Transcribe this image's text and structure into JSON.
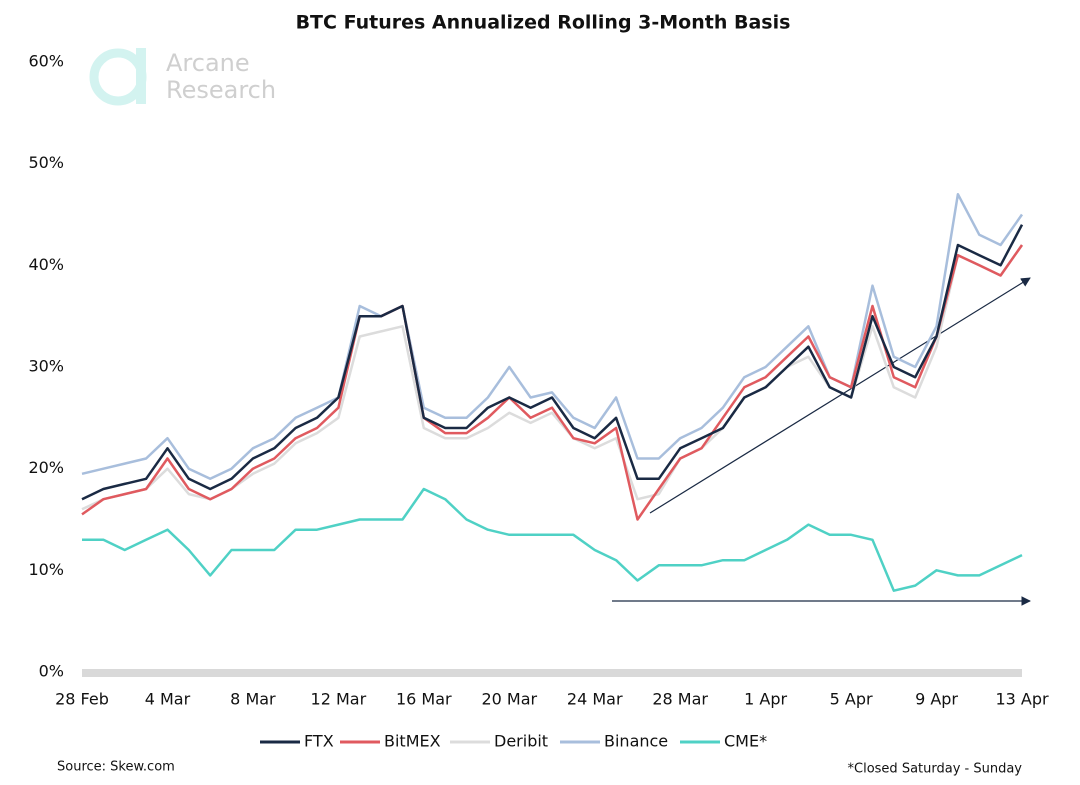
{
  "chart_data": {
    "type": "line",
    "title": "BTC Futures Annualized Rolling 3-Month Basis",
    "logo": [
      "Arcane",
      "Research"
    ],
    "source": "Source: Skew.com",
    "note": "*Closed Saturday - Sunday",
    "categories": [
      "28 Feb",
      null,
      null,
      null,
      "4 Mar",
      null,
      null,
      null,
      "8 Mar",
      null,
      null,
      null,
      "12 Mar",
      null,
      null,
      null,
      "16 Mar",
      null,
      null,
      null,
      "20 Mar",
      null,
      null,
      null,
      "24 Mar",
      null,
      null,
      null,
      "28 Mar",
      null,
      null,
      null,
      "1 Apr",
      null,
      null,
      null,
      "5 Apr",
      null,
      null,
      null,
      "9 Apr",
      null,
      null,
      null,
      "13 Apr"
    ],
    "series": [
      {
        "name": "FTX",
        "color": "#1a2a44",
        "values": [
          17,
          18,
          18.5,
          19,
          22,
          19,
          18,
          19,
          21,
          22,
          24,
          25,
          27,
          35,
          35,
          36,
          25,
          24,
          24,
          26,
          27,
          26,
          27,
          24,
          23,
          25,
          19,
          19,
          22,
          23,
          24,
          27,
          28,
          30,
          32,
          28,
          27,
          35,
          30,
          29,
          33,
          42,
          41,
          40,
          44
        ]
      },
      {
        "name": "BitMEX",
        "color": "#e05a5f",
        "values": [
          15.5,
          17,
          17.5,
          18,
          21,
          18,
          17,
          18,
          20,
          21,
          23,
          24,
          26,
          35,
          35,
          36,
          25,
          23.5,
          23.5,
          25,
          27,
          25,
          26,
          23,
          22.5,
          24,
          15,
          18,
          21,
          22,
          25,
          28,
          29,
          31,
          33,
          29,
          28,
          36,
          29,
          28,
          33,
          41,
          40,
          39,
          42
        ]
      },
      {
        "name": "Deribit",
        "color": "#dcdcdc",
        "values": [
          16,
          17,
          17.5,
          18,
          20,
          17.5,
          17,
          18,
          19.5,
          20.5,
          22.5,
          23.5,
          25,
          33,
          33.5,
          34,
          24,
          23,
          23,
          24,
          25.5,
          24.5,
          25.5,
          23,
          22,
          23,
          17,
          17.5,
          21,
          22,
          24,
          27,
          28,
          30,
          31,
          28,
          27,
          34,
          28,
          27,
          32,
          41,
          40,
          39,
          42
        ]
      },
      {
        "name": "Binance",
        "color": "#a8bedc",
        "values": [
          19.5,
          20,
          20.5,
          21,
          23,
          20,
          19,
          20,
          22,
          23,
          25,
          26,
          27,
          36,
          35,
          36,
          26,
          25,
          25,
          27,
          30,
          27,
          27.5,
          25,
          24,
          27,
          21,
          21,
          23,
          24,
          26,
          29,
          30,
          32,
          34,
          29,
          28,
          38,
          31,
          30,
          34,
          47,
          43,
          42,
          45
        ]
      },
      {
        "name": "CME*",
        "color": "#4fd1c5",
        "values": [
          13,
          13,
          12,
          13,
          14,
          12,
          9.5,
          12,
          12,
          12,
          14,
          14,
          14.5,
          15,
          15,
          15,
          18,
          17,
          15,
          14,
          13.5,
          13.5,
          13.5,
          13.5,
          12,
          11,
          9,
          10.5,
          10.5,
          10.5,
          11,
          11,
          12,
          13,
          14.5,
          13.5,
          13.5,
          13,
          8,
          8.5,
          10,
          9.5,
          9.5,
          10.5,
          11.5
        ]
      }
    ],
    "ylim": [
      0,
      60
    ],
    "yticks": [
      {
        "value": 0,
        "label": "0%"
      },
      {
        "value": 10,
        "label": "10%"
      },
      {
        "value": 20,
        "label": "20%"
      },
      {
        "value": 30,
        "label": "30%"
      },
      {
        "value": 40,
        "label": "40%"
      },
      {
        "value": 50,
        "label": "50%"
      },
      {
        "value": 60,
        "label": "60%"
      }
    ],
    "grid": false
  }
}
